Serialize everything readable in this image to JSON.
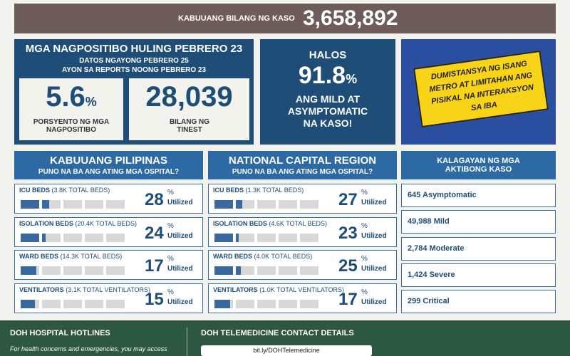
{
  "header": {
    "label": "KABUUANG BILANG NG KASO",
    "value": "3,658,892"
  },
  "positivity": {
    "title": "MGA NAGPOSITIBO HULING PEBRERO 23",
    "subtitle": [
      "DATOS NGAYONG PEBRERO 25",
      "AYON SA REPORTS NOONG PEBRERO 23"
    ],
    "rate": {
      "value": "5.6",
      "unit": "%",
      "label": "PORSYENTO NG MGA NAGPOSITIBO"
    },
    "tested": {
      "value": "28,039",
      "label": "BILANG NG TINEST"
    }
  },
  "mild": {
    "pre": "HALOS",
    "value": "91.8",
    "unit": "%",
    "text": "ANG MILD AT ASYMPTOMATIC NA KASO!"
  },
  "poster": {
    "text": "DUMISTANSYA NG ISANG METRO AT LIMITAHAN ANG PISIKAL NA INTERAKSYON SA IBA"
  },
  "hospitals": [
    {
      "title": "KABUUANG PILIPINAS",
      "subtitle": "PUNO NA BA ANG ATING MGA OSPITAL?",
      "rows": [
        {
          "label": "ICU BEDS",
          "detail": "(3.8K TOTAL BEDS)",
          "value": "28",
          "unit": "%",
          "status": "Utilized"
        },
        {
          "label": "ISOLATION BEDS",
          "detail": "(20.4K TOTAL BEDS)",
          "value": "24",
          "unit": "%",
          "status": "Utilized"
        },
        {
          "label": "WARD BEDS",
          "detail": "(14.3K TOTAL BEDS)",
          "value": "17",
          "unit": "%",
          "status": "Utilized"
        },
        {
          "label": "VENTILATORS",
          "detail": "(3.1K TOTAL VENTILATORS)",
          "value": "15",
          "unit": "%",
          "status": "Utilized"
        }
      ]
    },
    {
      "title": "NATIONAL CAPITAL REGION",
      "subtitle": "PUNO NA BA ANG ATING MGA OSPITAL?",
      "rows": [
        {
          "label": "ICU BEDS",
          "detail": "(1.3K TOTAL BEDS)",
          "value": "27",
          "unit": "%",
          "status": "Utilized"
        },
        {
          "label": "ISOLATION BEDS",
          "detail": "(4.6K TOTAL BEDS)",
          "value": "23",
          "unit": "%",
          "status": "Utilized"
        },
        {
          "label": "WARD BEDS",
          "detail": "(4.0K TOTAL BEDS)",
          "value": "25",
          "unit": "%",
          "status": "Utilized"
        },
        {
          "label": "VENTILATORS",
          "detail": "(1.0K TOTAL VENTILATORS)",
          "value": "17",
          "unit": "%",
          "status": "Utilized"
        }
      ]
    }
  ],
  "active": {
    "title": "KALAGAYAN NG MGA AKTIBONG KASO",
    "items": [
      "645 Asymptomatic",
      "49,988 Mild",
      "2,784 Moderate",
      "1,424 Severe",
      "299 Critical"
    ]
  },
  "footer": {
    "hotlines_title": "DOH HOSPITAL HOTLINES",
    "hotlines_text": "For health concerns and emergencies, you may access",
    "tele_title": "DOH TELEMEDICINE CONTACT DETAILS",
    "tele_link": "bit.ly/DOHTelemedicine"
  }
}
